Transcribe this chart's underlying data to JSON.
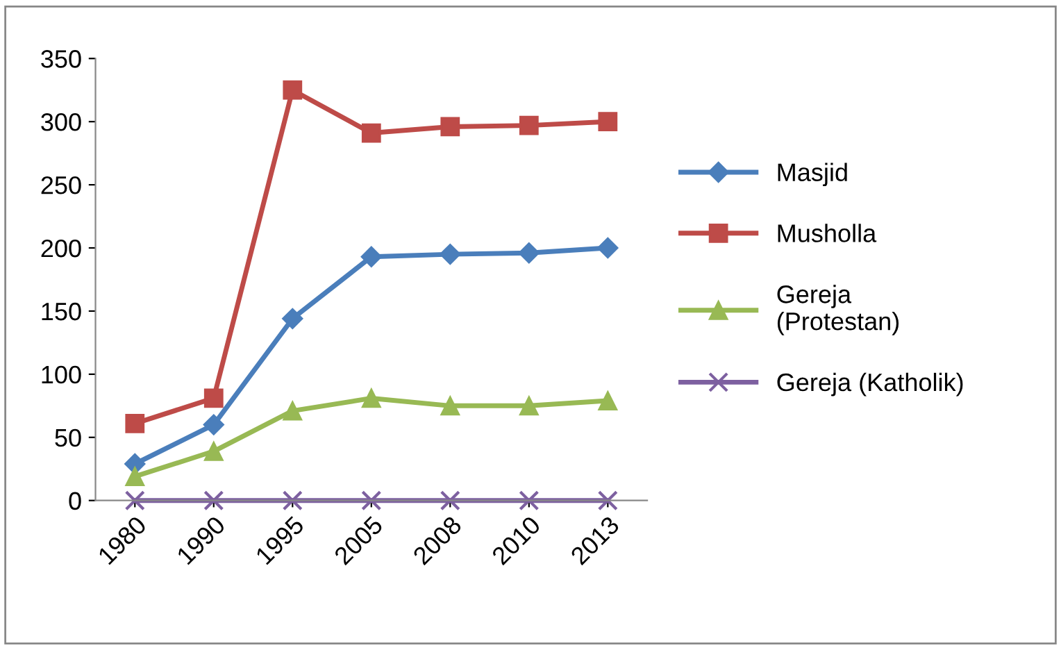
{
  "chart_data": {
    "type": "line",
    "categories": [
      "1980",
      "1990",
      "1995",
      "2005",
      "2008",
      "2010",
      "2013"
    ],
    "series": [
      {
        "name": "Masjid",
        "color": "#4a7ebb",
        "marker": "diamond",
        "values": [
          29,
          60,
          144,
          193,
          195,
          196,
          200
        ]
      },
      {
        "name": "Musholla",
        "color": "#be4b48",
        "marker": "square",
        "values": [
          61,
          81,
          325,
          291,
          296,
          297,
          300
        ]
      },
      {
        "name": "Gereja\n(Protestan)",
        "color": "#98b954",
        "marker": "triangle",
        "values": [
          19,
          39,
          71,
          81,
          75,
          75,
          79
        ]
      },
      {
        "name": "Gereja (Katholik)",
        "color": "#7d60a0",
        "marker": "cross",
        "values": [
          0,
          0,
          0,
          0,
          0,
          0,
          0
        ]
      }
    ],
    "ylim": [
      0,
      350
    ],
    "yticks": [
      0,
      50,
      100,
      150,
      200,
      250,
      300,
      350
    ],
    "grid": false,
    "legend": "right",
    "line_style": "solid"
  }
}
